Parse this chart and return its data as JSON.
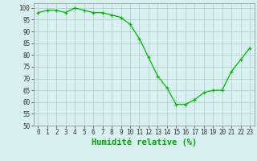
{
  "x": [
    0,
    1,
    2,
    3,
    4,
    5,
    6,
    7,
    8,
    9,
    10,
    11,
    12,
    13,
    14,
    15,
    16,
    17,
    18,
    19,
    20,
    21,
    22,
    23
  ],
  "y": [
    98,
    99,
    99,
    98,
    100,
    99,
    98,
    98,
    97,
    96,
    93,
    87,
    79,
    71,
    66,
    59,
    59,
    61,
    64,
    65,
    65,
    73,
    78,
    83
  ],
  "line_color": "#00bb00",
  "marker": "+",
  "bg_color": "#d9f0f0",
  "grid_color": "#aacccc",
  "xlabel": "Humidité relative (%)",
  "xlabel_color": "#00aa00",
  "ylim": [
    50,
    102
  ],
  "yticks": [
    50,
    55,
    60,
    65,
    70,
    75,
    80,
    85,
    90,
    95,
    100
  ],
  "xticks": [
    0,
    1,
    2,
    3,
    4,
    5,
    6,
    7,
    8,
    9,
    10,
    11,
    12,
    13,
    14,
    15,
    16,
    17,
    18,
    19,
    20,
    21,
    22,
    23
  ],
  "tick_label_size": 5.5,
  "xlabel_fontsize": 7.5
}
